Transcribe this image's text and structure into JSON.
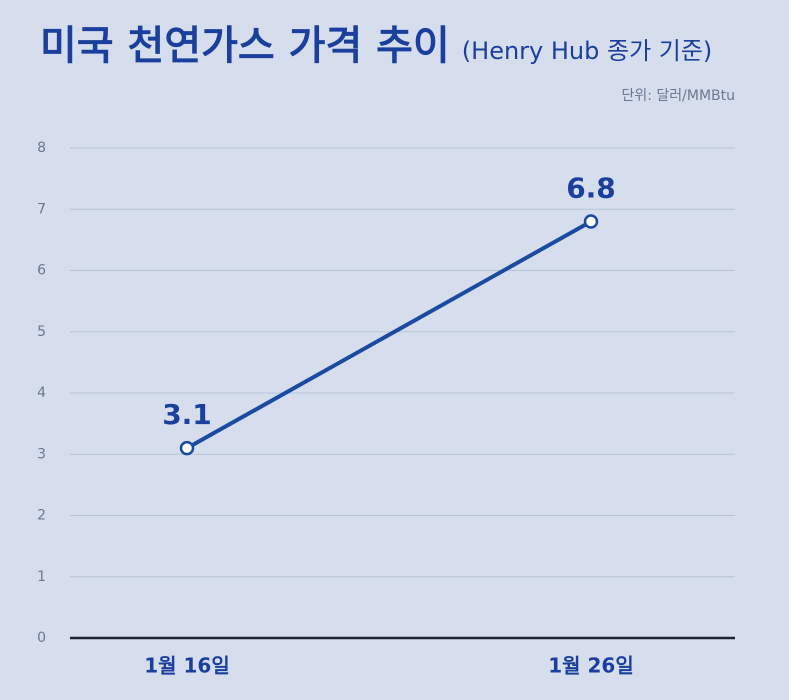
{
  "chart_data": {
    "type": "line",
    "title": "미국 천연가스 가격 추이",
    "subtitle": "(Henry Hub 종가 기준)",
    "unit_label": "단위: 달러/MMBtu",
    "categories": [
      "1월 16일",
      "1월 26일"
    ],
    "series": [
      {
        "name": "Henry Hub",
        "color": "#1b4aa3",
        "values": [
          3.1,
          6.8
        ]
      }
    ],
    "ylim": [
      0,
      8
    ],
    "yticks": [
      0,
      1,
      2,
      3,
      4,
      5,
      6,
      7,
      8
    ],
    "grid": true
  }
}
